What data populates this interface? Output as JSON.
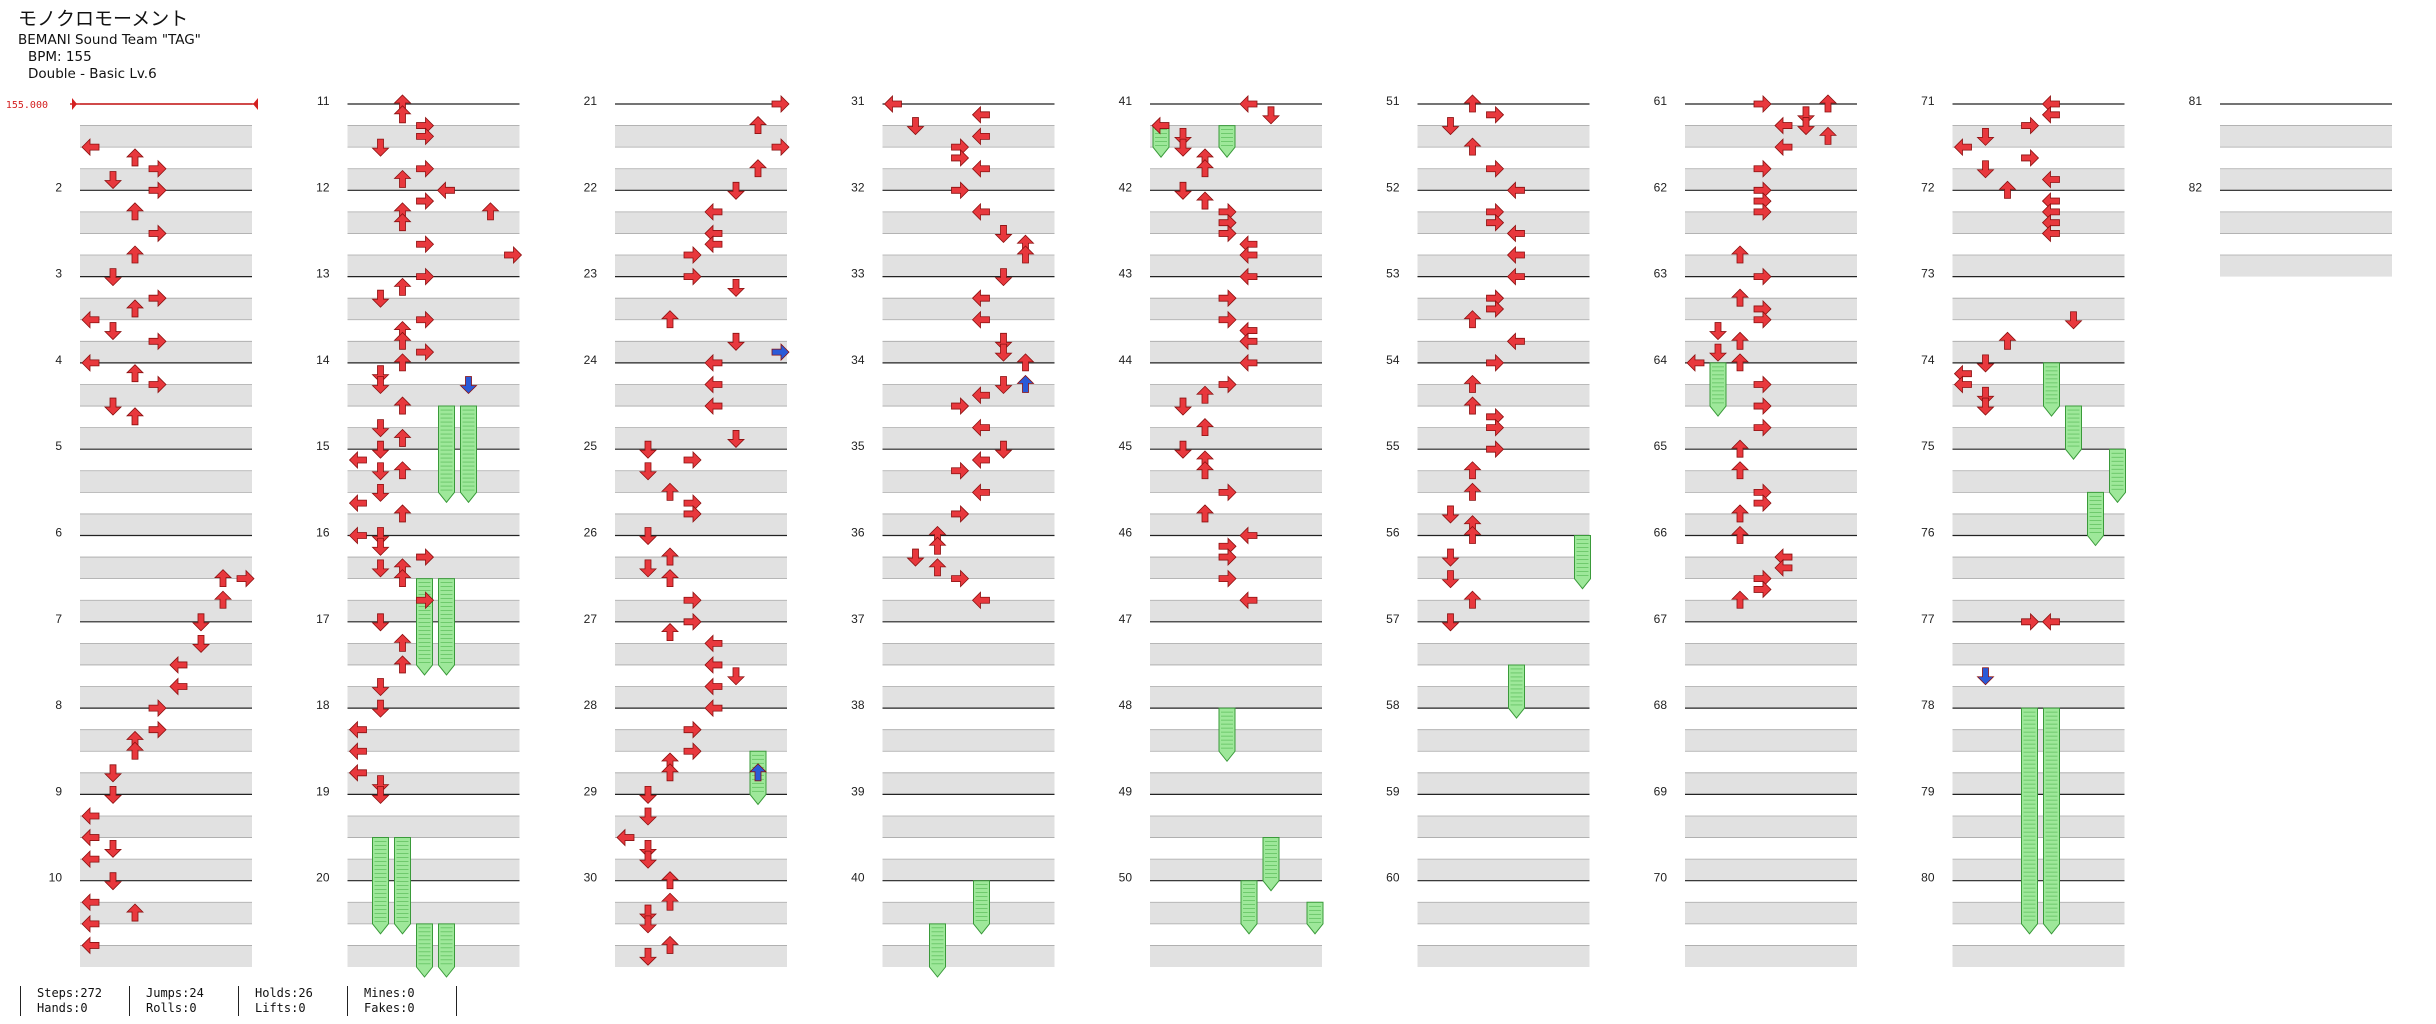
{
  "header": {
    "title": "モノクロモーメント",
    "artist": "BEMANI Sound Team \"TAG\"",
    "bpm_label": "BPM: 155",
    "difficulty_label": "Double - Basic  Lv.6"
  },
  "bpm_marker": {
    "label": "155.000",
    "measure": 1
  },
  "stats": [
    {
      "top": "Steps:272",
      "bottom": "Hands:0"
    },
    {
      "top": "Jumps:24",
      "bottom": "Rolls:0"
    },
    {
      "top": "Holds:26",
      "bottom": "Lifts:0"
    },
    {
      "top": "Mines:0",
      "bottom": "Fakes:0"
    }
  ],
  "chart": {
    "total_measures": 82,
    "measures_per_column": 10,
    "labeled_measures": [
      2,
      3,
      4,
      5,
      6,
      7,
      8,
      9,
      10,
      11,
      12,
      13,
      14,
      15,
      16,
      17,
      18,
      19,
      20,
      21,
      22,
      23,
      24,
      25,
      26,
      27,
      28,
      29,
      30,
      31,
      32,
      33,
      34,
      35,
      36,
      37,
      38,
      39,
      40,
      41,
      42,
      43,
      44,
      45,
      46,
      47,
      48,
      49,
      50,
      51,
      52,
      53,
      54,
      55,
      56,
      57,
      58,
      59,
      60,
      61,
      62,
      63,
      64,
      65,
      66,
      67,
      68,
      69,
      70,
      71,
      72,
      73,
      74,
      75,
      76,
      77,
      78,
      79,
      80,
      81,
      82
    ],
    "colors": {
      "note_red": "#e8383d",
      "note_blue": "#2a5ad8",
      "hold_green": "#9ee89a",
      "bpm_red": "#d42020",
      "band_gray": "#e1e1e1"
    },
    "notes": [
      {
        "b": 2.0,
        "l": 0
      },
      {
        "b": 2.5,
        "l": 2
      },
      {
        "b": 3.0,
        "l": 3
      },
      {
        "b": 3.5,
        "l": 1
      },
      {
        "b": 4.0,
        "l": 3
      },
      {
        "b": 5.0,
        "l": 2
      },
      {
        "b": 6.0,
        "l": 3
      },
      {
        "b": 7.0,
        "l": 2
      },
      {
        "b": 8.0,
        "l": 1
      },
      {
        "b": 9.0,
        "l": 3
      },
      {
        "b": 9.5,
        "l": 2
      },
      {
        "b": 10.0,
        "l": 0
      },
      {
        "b": 10.5,
        "l": 1
      },
      {
        "b": 11.0,
        "l": 3
      },
      {
        "b": 12.0,
        "l": 0
      },
      {
        "b": 12.5,
        "l": 2
      },
      {
        "b": 13.0,
        "l": 3
      },
      {
        "b": 14.0,
        "l": 1
      },
      {
        "b": 14.5,
        "l": 2
      },
      {
        "b": 22.0,
        "l": 7
      },
      {
        "b": 22.0,
        "l": 6
      },
      {
        "b": 23.0,
        "l": 6
      },
      {
        "b": 24.0,
        "l": 5
      },
      {
        "b": 25.0,
        "l": 5
      },
      {
        "b": 26.0,
        "l": 4
      },
      {
        "b": 27.0,
        "l": 4
      },
      {
        "b": 28.0,
        "l": 3
      },
      {
        "b": 29.0,
        "l": 3
      },
      {
        "b": 29.5,
        "l": 2
      },
      {
        "b": 30.0,
        "l": 2
      },
      {
        "b": 31.0,
        "l": 1
      },
      {
        "b": 32.0,
        "l": 1
      },
      {
        "b": 33.0,
        "l": 0
      },
      {
        "b": 34.0,
        "l": 0
      },
      {
        "b": 34.5,
        "l": 1
      },
      {
        "b": 35.0,
        "l": 0
      },
      {
        "b": 36.0,
        "l": 1
      },
      {
        "b": 37.0,
        "l": 0
      },
      {
        "b": 37.5,
        "l": 2
      },
      {
        "b": 38.0,
        "l": 0
      },
      {
        "b": 39.0,
        "l": 0
      },
      {
        "b": 40.0,
        "l": 2
      },
      {
        "b": 40.5,
        "l": 2
      },
      {
        "b": 41.0,
        "l": 3
      },
      {
        "b": 41.5,
        "l": 3
      },
      {
        "b": 42.0,
        "l": 1
      },
      {
        "b": 43.0,
        "l": 3
      },
      {
        "b": 43.5,
        "l": 2
      },
      {
        "b": 44.0,
        "l": 4
      },
      {
        "b": 44.5,
        "l": 3
      },
      {
        "b": 45.0,
        "l": 2
      },
      {
        "b": 45.0,
        "l": 6
      },
      {
        "b": 45.5,
        "l": 2
      },
      {
        "b": 46.5,
        "l": 3
      },
      {
        "b": 47.0,
        "l": 7
      },
      {
        "b": 48.0,
        "l": 3
      },
      {
        "b": 48.5,
        "l": 2
      },
      {
        "b": 49.0,
        "l": 1
      },
      {
        "b": 50.0,
        "l": 3
      },
      {
        "b": 50.5,
        "l": 2
      },
      {
        "b": 51.0,
        "l": 2
      },
      {
        "b": 51.5,
        "l": 3
      },
      {
        "b": 52.0,
        "l": 2
      },
      {
        "b": 52.5,
        "l": 1
      },
      {
        "b": 53.0,
        "l": 1
      },
      {
        "b": 54.0,
        "l": 2
      },
      {
        "b": 55.0,
        "l": 1
      },
      {
        "b": 55.5,
        "l": 2
      },
      {
        "b": 56.0,
        "l": 1
      },
      {
        "b": 56.5,
        "l": 0
      },
      {
        "b": 57.0,
        "l": 2
      },
      {
        "b": 57.0,
        "l": 1
      },
      {
        "b": 58.0,
        "l": 1
      },
      {
        "b": 58.5,
        "l": 0
      },
      {
        "b": 59.0,
        "l": 2
      },
      {
        "b": 60.0,
        "l": 0
      },
      {
        "b": 60.0,
        "l": 1
      },
      {
        "b": 60.5,
        "l": 1
      },
      {
        "b": 61.0,
        "l": 3
      },
      {
        "b": 61.5,
        "l": 2
      },
      {
        "b": 61.5,
        "l": 1
      },
      {
        "b": 62.0,
        "l": 2
      },
      {
        "b": 63.0,
        "l": 3
      },
      {
        "b": 64.0,
        "l": 1
      },
      {
        "b": 65.0,
        "l": 2
      },
      {
        "b": 66.0,
        "l": 2
      },
      {
        "b": 67.0,
        "l": 1
      },
      {
        "b": 68.0,
        "l": 1
      },
      {
        "b": 69.0,
        "l": 0
      },
      {
        "b": 70.0,
        "l": 0
      },
      {
        "b": 71.0,
        "l": 0
      },
      {
        "b": 71.5,
        "l": 1
      },
      {
        "b": 72.0,
        "l": 1
      },
      {
        "b": 80.0,
        "l": 7
      },
      {
        "b": 81.0,
        "l": 6
      },
      {
        "b": 82.0,
        "l": 7
      },
      {
        "b": 83.0,
        "l": 6
      },
      {
        "b": 84.0,
        "l": 5
      },
      {
        "b": 85.0,
        "l": 4
      },
      {
        "b": 86.0,
        "l": 4
      },
      {
        "b": 86.5,
        "l": 4
      },
      {
        "b": 87.0,
        "l": 3
      },
      {
        "b": 88.0,
        "l": 3
      },
      {
        "b": 88.5,
        "l": 5
      },
      {
        "b": 90.0,
        "l": 2
      },
      {
        "b": 91.0,
        "l": 5
      },
      {
        "b": 92.0,
        "l": 4
      },
      {
        "b": 93.0,
        "l": 4
      },
      {
        "b": 94.0,
        "l": 4
      },
      {
        "b": 95.5,
        "l": 5
      },
      {
        "b": 96.0,
        "l": 1
      },
      {
        "b": 96.5,
        "l": 3
      },
      {
        "b": 97.0,
        "l": 1
      },
      {
        "b": 98.0,
        "l": 2
      },
      {
        "b": 98.5,
        "l": 3
      },
      {
        "b": 99.0,
        "l": 3
      },
      {
        "b": 100.0,
        "l": 1
      },
      {
        "b": 101.0,
        "l": 2
      },
      {
        "b": 101.5,
        "l": 1
      },
      {
        "b": 102.0,
        "l": 2
      },
      {
        "b": 103.0,
        "l": 3
      },
      {
        "b": 104.0,
        "l": 3
      },
      {
        "b": 104.5,
        "l": 2
      },
      {
        "b": 105.0,
        "l": 4
      },
      {
        "b": 106.0,
        "l": 4
      },
      {
        "b": 106.5,
        "l": 5
      },
      {
        "b": 107.0,
        "l": 4
      },
      {
        "b": 108.0,
        "l": 4
      },
      {
        "b": 109.0,
        "l": 3
      },
      {
        "b": 110.0,
        "l": 3
      },
      {
        "b": 110.5,
        "l": 2
      },
      {
        "b": 111.0,
        "l": 2
      },
      {
        "b": 112.0,
        "l": 1
      },
      {
        "b": 113.0,
        "l": 1
      },
      {
        "b": 114.0,
        "l": 0
      },
      {
        "b": 114.5,
        "l": 1
      },
      {
        "b": 115.0,
        "l": 1
      },
      {
        "b": 116.0,
        "l": 2
      },
      {
        "b": 117.0,
        "l": 2
      },
      {
        "b": 117.5,
        "l": 1
      },
      {
        "b": 118.0,
        "l": 1
      },
      {
        "b": 119.0,
        "l": 2
      },
      {
        "b": 119.5,
        "l": 1
      },
      {
        "b": 120.0,
        "l": 0
      },
      {
        "b": 120.5,
        "l": 4
      },
      {
        "b": 121.0,
        "l": 1
      },
      {
        "b": 121.5,
        "l": 4
      },
      {
        "b": 122.0,
        "l": 3
      },
      {
        "b": 122.5,
        "l": 3
      },
      {
        "b": 123.0,
        "l": 4
      },
      {
        "b": 124.0,
        "l": 3
      },
      {
        "b": 125.0,
        "l": 4
      },
      {
        "b": 126.0,
        "l": 5
      },
      {
        "b": 126.5,
        "l": 6
      },
      {
        "b": 127.0,
        "l": 6
      },
      {
        "b": 128.0,
        "l": 5
      },
      {
        "b": 129.0,
        "l": 4
      },
      {
        "b": 130.0,
        "l": 4
      },
      {
        "b": 131.0,
        "l": 5
      },
      {
        "b": 131.5,
        "l": 5
      },
      {
        "b": 132.0,
        "l": 6
      },
      {
        "b": 133.0,
        "l": 5
      },
      {
        "b": 133.5,
        "l": 4
      },
      {
        "b": 134.0,
        "l": 3
      },
      {
        "b": 135.0,
        "l": 4
      },
      {
        "b": 136.0,
        "l": 5
      },
      {
        "b": 136.5,
        "l": 4
      },
      {
        "b": 137.0,
        "l": 3
      },
      {
        "b": 138.0,
        "l": 4
      },
      {
        "b": 139.0,
        "l": 3
      },
      {
        "b": 140.0,
        "l": 2
      },
      {
        "b": 140.5,
        "l": 2
      },
      {
        "b": 141.0,
        "l": 1
      },
      {
        "b": 141.5,
        "l": 2
      },
      {
        "b": 142.0,
        "l": 3
      },
      {
        "b": 143.0,
        "l": 4
      },
      {
        "b": 160.0,
        "l": 4
      },
      {
        "b": 160.5,
        "l": 5
      },
      {
        "b": 161.0,
        "l": 0
      },
      {
        "b": 161.5,
        "l": 1
      },
      {
        "b": 162.0,
        "l": 1
      },
      {
        "b": 162.5,
        "l": 2
      },
      {
        "b": 163.0,
        "l": 2
      },
      {
        "b": 164.0,
        "l": 1
      },
      {
        "b": 164.5,
        "l": 2
      },
      {
        "b": 165.0,
        "l": 3
      },
      {
        "b": 165.5,
        "l": 3
      },
      {
        "b": 166.0,
        "l": 3
      },
      {
        "b": 166.5,
        "l": 4
      },
      {
        "b": 167.0,
        "l": 4
      },
      {
        "b": 168.0,
        "l": 4
      },
      {
        "b": 169.0,
        "l": 3
      },
      {
        "b": 170.0,
        "l": 3
      },
      {
        "b": 170.5,
        "l": 4
      },
      {
        "b": 171.0,
        "l": 4
      },
      {
        "b": 172.0,
        "l": 4
      },
      {
        "b": 173.0,
        "l": 3
      },
      {
        "b": 173.5,
        "l": 2
      },
      {
        "b": 174.0,
        "l": 1
      },
      {
        "b": 175.0,
        "l": 2
      },
      {
        "b": 176.0,
        "l": 1
      },
      {
        "b": 176.5,
        "l": 2
      },
      {
        "b": 177.0,
        "l": 2
      },
      {
        "b": 178.0,
        "l": 3
      },
      {
        "b": 179.0,
        "l": 2
      },
      {
        "b": 180.0,
        "l": 4
      },
      {
        "b": 180.5,
        "l": 3
      },
      {
        "b": 181.0,
        "l": 3
      },
      {
        "b": 182.0,
        "l": 3
      },
      {
        "b": 183.0,
        "l": 4
      },
      {
        "b": 200.0,
        "l": 2
      },
      {
        "b": 200.5,
        "l": 3
      },
      {
        "b": 201.0,
        "l": 1
      },
      {
        "b": 202.0,
        "l": 2
      },
      {
        "b": 203.0,
        "l": 3
      },
      {
        "b": 204.0,
        "l": 4
      },
      {
        "b": 205.0,
        "l": 3
      },
      {
        "b": 205.5,
        "l": 3
      },
      {
        "b": 206.0,
        "l": 4
      },
      {
        "b": 207.0,
        "l": 4
      },
      {
        "b": 208.0,
        "l": 4
      },
      {
        "b": 209.0,
        "l": 3
      },
      {
        "b": 209.5,
        "l": 3
      },
      {
        "b": 210.0,
        "l": 2
      },
      {
        "b": 211.0,
        "l": 4
      },
      {
        "b": 212.0,
        "l": 3
      },
      {
        "b": 213.0,
        "l": 2
      },
      {
        "b": 214.0,
        "l": 2
      },
      {
        "b": 214.5,
        "l": 3
      },
      {
        "b": 215.0,
        "l": 3
      },
      {
        "b": 216.0,
        "l": 3
      },
      {
        "b": 217.0,
        "l": 2
      },
      {
        "b": 218.0,
        "l": 2
      },
      {
        "b": 219.0,
        "l": 1
      },
      {
        "b": 219.5,
        "l": 2
      },
      {
        "b": 220.0,
        "l": 2
      },
      {
        "b": 221.0,
        "l": 1
      },
      {
        "b": 222.0,
        "l": 1
      },
      {
        "b": 223.0,
        "l": 2
      },
      {
        "b": 224.0,
        "l": 1
      },
      {
        "b": 240.0,
        "l": 3
      },
      {
        "b": 240.0,
        "l": 6
      },
      {
        "b": 240.5,
        "l": 5
      },
      {
        "b": 241.0,
        "l": 4
      },
      {
        "b": 241.0,
        "l": 5
      },
      {
        "b": 241.5,
        "l": 6
      },
      {
        "b": 242.0,
        "l": 4
      },
      {
        "b": 243.0,
        "l": 3
      },
      {
        "b": 244.0,
        "l": 3
      },
      {
        "b": 244.5,
        "l": 3
      },
      {
        "b": 245.0,
        "l": 3
      },
      {
        "b": 247.0,
        "l": 2
      },
      {
        "b": 248.0,
        "l": 3
      },
      {
        "b": 249.0,
        "l": 2
      },
      {
        "b": 249.5,
        "l": 3
      },
      {
        "b": 250.0,
        "l": 3
      },
      {
        "b": 250.5,
        "l": 1
      },
      {
        "b": 251.0,
        "l": 2
      },
      {
        "b": 251.5,
        "l": 1
      },
      {
        "b": 252.0,
        "l": 0
      },
      {
        "b": 252.0,
        "l": 2
      },
      {
        "b": 253.0,
        "l": 3
      },
      {
        "b": 254.0,
        "l": 3
      },
      {
        "b": 255.0,
        "l": 3
      },
      {
        "b": 256.0,
        "l": 2
      },
      {
        "b": 257.0,
        "l": 2
      },
      {
        "b": 258.0,
        "l": 3
      },
      {
        "b": 258.5,
        "l": 3
      },
      {
        "b": 259.0,
        "l": 2
      },
      {
        "b": 260.0,
        "l": 2
      },
      {
        "b": 261.0,
        "l": 4
      },
      {
        "b": 261.5,
        "l": 4
      },
      {
        "b": 262.0,
        "l": 3
      },
      {
        "b": 262.5,
        "l": 3
      },
      {
        "b": 263.0,
        "l": 2
      },
      {
        "b": 280.0,
        "l": 4
      },
      {
        "b": 280.5,
        "l": 4
      },
      {
        "b": 281.0,
        "l": 3
      },
      {
        "b": 281.5,
        "l": 1
      },
      {
        "b": 282.0,
        "l": 0
      },
      {
        "b": 282.5,
        "l": 3
      },
      {
        "b": 283.0,
        "l": 1
      },
      {
        "b": 283.5,
        "l": 4
      },
      {
        "b": 284.0,
        "l": 2
      },
      {
        "b": 284.5,
        "l": 4
      },
      {
        "b": 285.0,
        "l": 4
      },
      {
        "b": 285.5,
        "l": 4
      },
      {
        "b": 286.0,
        "l": 4
      },
      {
        "b": 290.0,
        "l": 5
      },
      {
        "b": 291.0,
        "l": 2
      },
      {
        "b": 292.0,
        "l": 1
      },
      {
        "b": 292.5,
        "l": 0
      },
      {
        "b": 293.0,
        "l": 0
      },
      {
        "b": 293.5,
        "l": 1
      },
      {
        "b": 294.0,
        "l": 1
      },
      {
        "b": 304.0,
        "l": 3
      },
      {
        "b": 304.0,
        "l": 4
      }
    ],
    "blue_notes": [
      {
        "b": 53.0,
        "l": 5
      },
      {
        "b": 91.5,
        "l": 7
      },
      {
        "b": 111.0,
        "l": 6
      },
      {
        "b": 133.0,
        "l": 6
      },
      {
        "b": 306.5,
        "l": 1
      }
    ],
    "holds": [
      {
        "b": 54.0,
        "l": 4,
        "e": 58.0
      },
      {
        "b": 54.0,
        "l": 5,
        "e": 58.0
      },
      {
        "b": 62.0,
        "l": 3,
        "e": 66.0
      },
      {
        "b": 62.0,
        "l": 4,
        "e": 66.0
      },
      {
        "b": 74.0,
        "l": 1,
        "e": 78.0
      },
      {
        "b": 74.0,
        "l": 2,
        "e": 78.0
      },
      {
        "b": 78.0,
        "l": 3,
        "e": 80.0
      },
      {
        "b": 78.0,
        "l": 4,
        "e": 80.0
      },
      {
        "b": 110.0,
        "l": 6,
        "e": 112.0
      },
      {
        "b": 158.0,
        "l": 2,
        "e": 160.0
      },
      {
        "b": 156.0,
        "l": 4,
        "e": 158.0
      },
      {
        "b": 161.0,
        "l": 0,
        "e": 162.0
      },
      {
        "b": 161.0,
        "l": 3,
        "e": 162.0
      },
      {
        "b": 188.0,
        "l": 3,
        "e": 190.0
      },
      {
        "b": 194.0,
        "l": 5,
        "e": 196.0
      },
      {
        "b": 196.0,
        "l": 4,
        "e": 198.0
      },
      {
        "b": 197.0,
        "l": 7,
        "e": 198.0
      },
      {
        "b": 220.0,
        "l": 7,
        "e": 222.0
      },
      {
        "b": 226.0,
        "l": 4,
        "e": 228.0
      },
      {
        "b": 252.0,
        "l": 1,
        "e": 254.0
      },
      {
        "b": 292.0,
        "l": 4,
        "e": 294.0
      },
      {
        "b": 294.0,
        "l": 5,
        "e": 296.0
      },
      {
        "b": 296.0,
        "l": 7,
        "e": 298.0
      },
      {
        "b": 298.0,
        "l": 6,
        "e": 300.0
      },
      {
        "b": 308.0,
        "l": 3,
        "e": 318.0
      },
      {
        "b": 308.0,
        "l": 4,
        "e": 318.0
      }
    ]
  }
}
